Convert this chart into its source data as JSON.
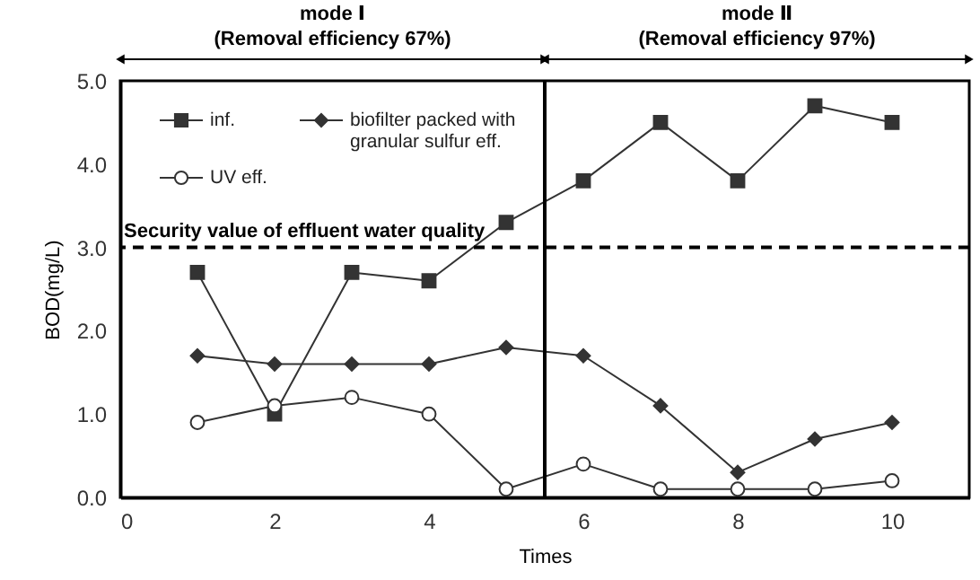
{
  "chart_data": {
    "type": "line",
    "xlabel": "Times",
    "ylabel": "BOD(mg/L)",
    "x": [
      1,
      2,
      3,
      4,
      5,
      6,
      7,
      8,
      9,
      10
    ],
    "series": [
      {
        "name": "inf.",
        "color": "#333333",
        "marker": "square",
        "values": [
          2.7,
          1.0,
          2.7,
          2.6,
          3.3,
          3.8,
          4.5,
          3.8,
          4.7,
          4.5
        ]
      },
      {
        "name": "biofilter packed with granular sulfur eff.",
        "color": "#333333",
        "marker": "diamond",
        "values": [
          1.7,
          1.6,
          1.6,
          1.6,
          1.8,
          1.7,
          1.1,
          0.3,
          0.7,
          0.9
        ]
      },
      {
        "name": "UV eff.",
        "color": "#333333",
        "marker": "circle",
        "values": [
          0.9,
          1.1,
          1.2,
          1.0,
          0.1,
          0.4,
          0.1,
          0.1,
          0.1,
          0.2
        ]
      }
    ],
    "xlim": [
      0,
      11
    ],
    "xticks": [
      0,
      2,
      4,
      6,
      8,
      10
    ],
    "ylim": [
      0,
      5
    ],
    "yticks": [
      {
        "value": 0,
        "label": "0.0"
      },
      {
        "value": 1,
        "label": "1.0"
      },
      {
        "value": 2,
        "label": "2.0"
      },
      {
        "value": 3,
        "label": "3.0"
      },
      {
        "value": 4,
        "label": "4.0"
      },
      {
        "value": 5,
        "label": "5.0"
      }
    ],
    "ref_lines": [
      {
        "axis": "y",
        "value": 3,
        "label": "Security value of effluent water quality",
        "line_style": "dashed",
        "color": "#000000"
      },
      {
        "axis": "x",
        "value": 5.5,
        "line_style": "solid",
        "color": "#000000"
      }
    ],
    "annotations": [
      "mode Ⅰ",
      "(Removal efficiency 67%)",
      "mode Ⅱ",
      "(Removal efficiency 97%)"
    ],
    "legend": "top left",
    "grid": false
  }
}
